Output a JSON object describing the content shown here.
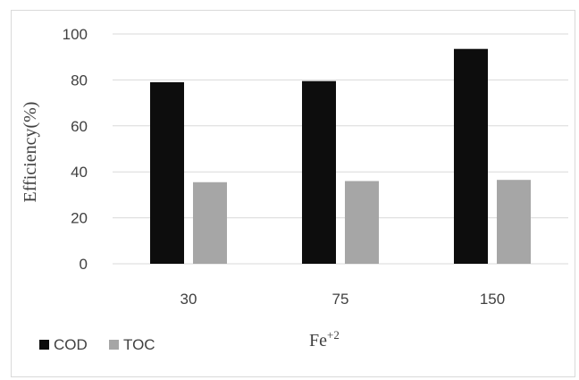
{
  "chart_data": {
    "type": "bar",
    "title": "",
    "xlabel": "Fe",
    "xlabel_superscript": "+2",
    "ylabel": "Efficiency(%)",
    "categories": [
      "30",
      "75",
      "150"
    ],
    "series": [
      {
        "name": "COD",
        "values": [
          79,
          79.5,
          93.5
        ],
        "color": "#0d0d0d"
      },
      {
        "name": "TOC",
        "values": [
          35.5,
          36,
          36.5
        ],
        "color": "#a6a6a6"
      }
    ],
    "ylim": [
      0,
      100
    ],
    "yticks": [
      "0",
      "20",
      "40",
      "60",
      "80",
      "100"
    ],
    "grid": true,
    "legend_position": "bottom-left",
    "gridline_color": "#d9d9d9"
  }
}
